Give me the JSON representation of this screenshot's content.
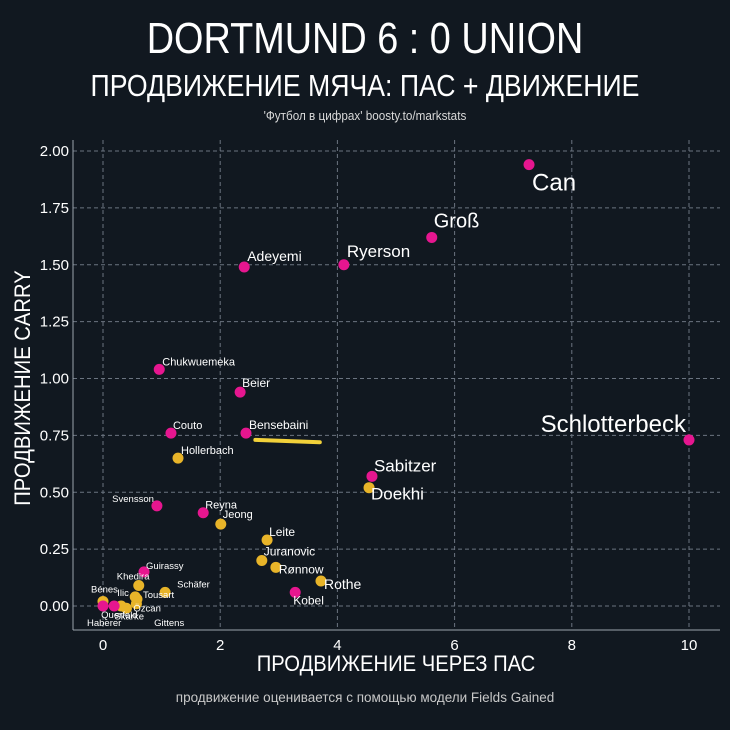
{
  "header": {
    "title": "DORTMUND 6 : 0 UNION",
    "subtitle": "ПРОДВИЖЕНИЕ МЯЧА: ПАС + ДВИЖЕНИЕ",
    "credit": "'Футбол в цифрах' boosty.to/markstats"
  },
  "footer": "продвижение оценивается с помощью модели Fields Gained",
  "colors": {
    "background": "#111820",
    "dortmund": "#e6168f",
    "union": "#e8b429",
    "highlight_line": "#f2d13a",
    "grid": "#6b7480"
  },
  "chart_data": {
    "type": "scatter",
    "title": "ПРОДВИЖЕНИЕ МЯЧА: ПАС + ДВИЖЕНИЕ",
    "xlabel": "ПРОДВИЖЕНИЕ ЧЕРЕЗ ПАС",
    "ylabel": "ПРОДВИЖЕНИЕ CARRY",
    "xlim": [
      -0.5,
      10.5
    ],
    "ylim": [
      -0.1,
      2.05
    ],
    "xticks": [
      "0",
      "2",
      "4",
      "6",
      "8",
      "10"
    ],
    "xtick_values": [
      0,
      2,
      4,
      6,
      8,
      10
    ],
    "yticks": [
      "0.00",
      "0.25",
      "0.50",
      "0.75",
      "1.00",
      "1.25",
      "1.50",
      "1.75",
      "2.00"
    ],
    "ytick_values": [
      0,
      0.25,
      0.5,
      0.75,
      1.0,
      1.25,
      1.5,
      1.75,
      2.0
    ],
    "grid": true,
    "series": [
      {
        "name": "Dortmund",
        "color": "#e6168f",
        "points": [
          {
            "label": "Can",
            "x": 7.27,
            "y": 1.94
          },
          {
            "label": "Groß",
            "x": 5.61,
            "y": 1.62
          },
          {
            "label": "Ryerson",
            "x": 4.11,
            "y": 1.5
          },
          {
            "label": "Adeyemi",
            "x": 2.41,
            "y": 1.49
          },
          {
            "label": "Schlotterbeck",
            "x": 10.0,
            "y": 0.73
          },
          {
            "label": "Chukwuemeka",
            "x": 0.96,
            "y": 1.04
          },
          {
            "label": "Beier",
            "x": 2.34,
            "y": 0.94
          },
          {
            "label": "Couto",
            "x": 1.16,
            "y": 0.76
          },
          {
            "label": "Bensebaini",
            "x": 2.44,
            "y": 0.76
          },
          {
            "label": "Sabitzer",
            "x": 4.59,
            "y": 0.57
          },
          {
            "label": "Svensson",
            "x": 0.92,
            "y": 0.44
          },
          {
            "label": "Reyna",
            "x": 1.71,
            "y": 0.41
          },
          {
            "label": "Kobel",
            "x": 3.28,
            "y": 0.06
          },
          {
            "label": "Guirassy",
            "x": 0.7,
            "y": 0.15
          },
          {
            "label": "Haberer",
            "x": 0.0,
            "y": 0.0
          },
          {
            "label": "Gittens",
            "x": 0.19,
            "y": 0.0
          }
        ]
      },
      {
        "name": "Union",
        "color": "#e8b429",
        "points": [
          {
            "label": "Hollerbach",
            "x": 1.28,
            "y": 0.65
          },
          {
            "label": "Doekhi",
            "x": 4.54,
            "y": 0.52
          },
          {
            "label": "Jeong",
            "x": 2.01,
            "y": 0.36
          },
          {
            "label": "Leite",
            "x": 2.8,
            "y": 0.29
          },
          {
            "label": "Juranovic",
            "x": 2.71,
            "y": 0.2
          },
          {
            "label": "Rønnow",
            "x": 2.95,
            "y": 0.17
          },
          {
            "label": "Rothe",
            "x": 3.72,
            "y": 0.11
          },
          {
            "label": "Khedira",
            "x": 0.61,
            "y": 0.09
          },
          {
            "label": "Schäfer",
            "x": 1.06,
            "y": 0.06
          },
          {
            "label": "Tousart",
            "x": 0.58,
            "y": 0.03
          },
          {
            "label": "Bénes",
            "x": 0.0,
            "y": 0.02
          },
          {
            "label": "Querfeld",
            "x": 0.31,
            "y": 0.0
          },
          {
            "label": "Ilic",
            "x": 0.55,
            "y": 0.04
          },
          {
            "label": "Özcan",
            "x": 0.57,
            "y": 0.01
          },
          {
            "label": "Skarke",
            "x": 0.4,
            "y": -0.01
          }
        ]
      }
    ],
    "annotations": [
      {
        "type": "line",
        "x": [
          2.6,
          3.7
        ],
        "y": [
          0.73,
          0.72
        ],
        "color": "#f2d13a",
        "note": "highlight under Bensebaini"
      }
    ]
  }
}
